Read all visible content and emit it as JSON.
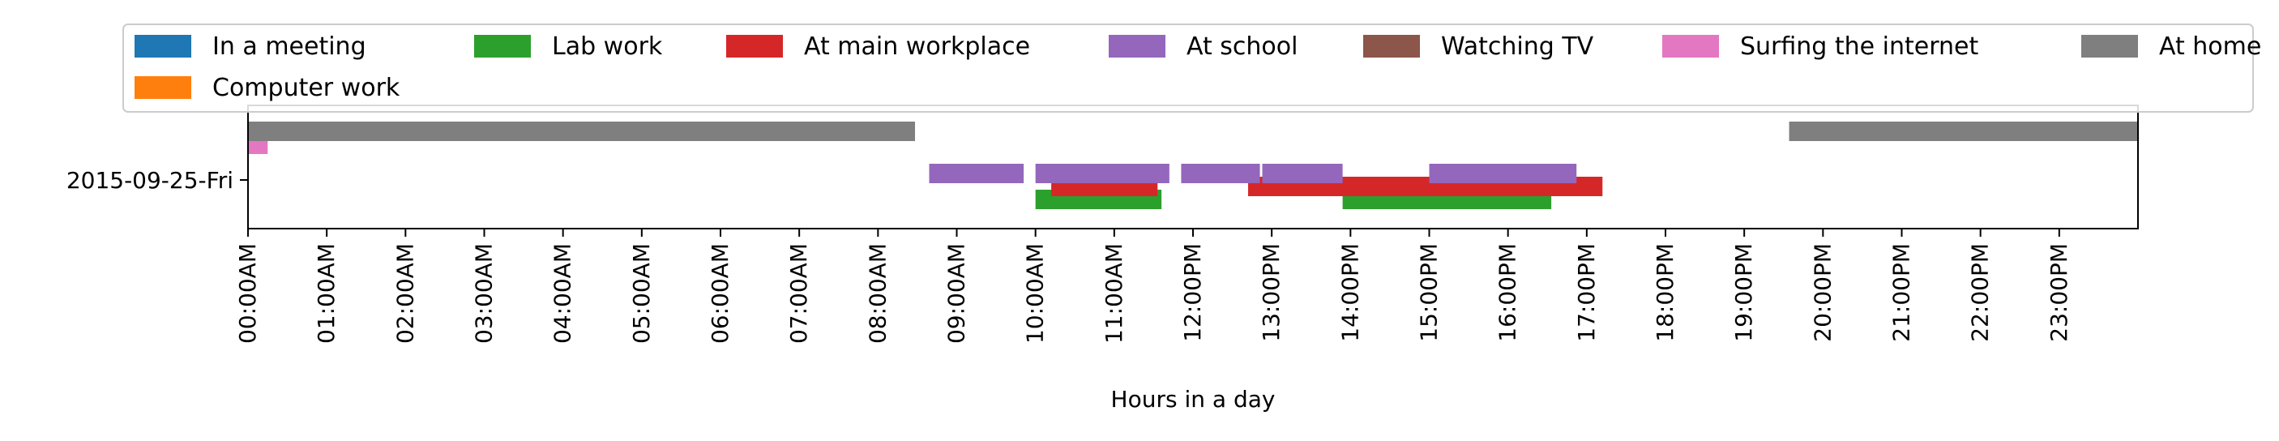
{
  "chart_data": {
    "type": "timeline",
    "title": "",
    "xlabel": "Hours in a day",
    "ylabel": "",
    "x_unit": "hours",
    "xlim": [
      0,
      24
    ],
    "x_ticks": [
      {
        "value": 0,
        "label": "00:00AM"
      },
      {
        "value": 1,
        "label": "01:00AM"
      },
      {
        "value": 2,
        "label": "02:00AM"
      },
      {
        "value": 3,
        "label": "03:00AM"
      },
      {
        "value": 4,
        "label": "04:00AM"
      },
      {
        "value": 5,
        "label": "05:00AM"
      },
      {
        "value": 6,
        "label": "06:00AM"
      },
      {
        "value": 7,
        "label": "07:00AM"
      },
      {
        "value": 8,
        "label": "08:00AM"
      },
      {
        "value": 9,
        "label": "09:00AM"
      },
      {
        "value": 10,
        "label": "10:00AM"
      },
      {
        "value": 11,
        "label": "11:00AM"
      },
      {
        "value": 12,
        "label": "12:00PM"
      },
      {
        "value": 13,
        "label": "13:00PM"
      },
      {
        "value": 14,
        "label": "14:00PM"
      },
      {
        "value": 15,
        "label": "15:00PM"
      },
      {
        "value": 16,
        "label": "16:00PM"
      },
      {
        "value": 17,
        "label": "17:00PM"
      },
      {
        "value": 18,
        "label": "18:00PM"
      },
      {
        "value": 19,
        "label": "19:00PM"
      },
      {
        "value": 20,
        "label": "20:00PM"
      },
      {
        "value": 21,
        "label": "21:00PM"
      },
      {
        "value": 22,
        "label": "22:00PM"
      },
      {
        "value": 23,
        "label": "23:00PM"
      }
    ],
    "categories": [
      "2015-09-25-Fri"
    ],
    "legend": {
      "placement": "top"
    },
    "grid": false,
    "series": [
      {
        "name": "In a meeting",
        "color": "#1f77b4",
        "intervals": []
      },
      {
        "name": "Computer work",
        "color": "#ff7f0e",
        "intervals": []
      },
      {
        "name": "Lab work",
        "color": "#2ca02c",
        "intervals": [
          [
            10.0,
            11.6
          ],
          [
            13.9,
            16.55
          ]
        ]
      },
      {
        "name": "At main workplace",
        "color": "#d62728",
        "intervals": [
          [
            10.2,
            11.55
          ],
          [
            12.7,
            17.2
          ]
        ]
      },
      {
        "name": "At school",
        "color": "#9467bd",
        "intervals": [
          [
            8.65,
            9.85
          ],
          [
            10.0,
            11.7
          ],
          [
            11.85,
            12.85
          ],
          [
            12.88,
            13.9
          ],
          [
            15.0,
            16.87
          ]
        ]
      },
      {
        "name": "Watching TV",
        "color": "#8c564b",
        "intervals": []
      },
      {
        "name": "Surfing the internet",
        "color": "#e377c2",
        "intervals": [
          [
            0.0,
            0.25
          ]
        ]
      },
      {
        "name": "At home",
        "color": "#7f7f7f",
        "intervals": [
          [
            0.0,
            8.47
          ],
          [
            19.57,
            24.0
          ]
        ]
      }
    ]
  }
}
